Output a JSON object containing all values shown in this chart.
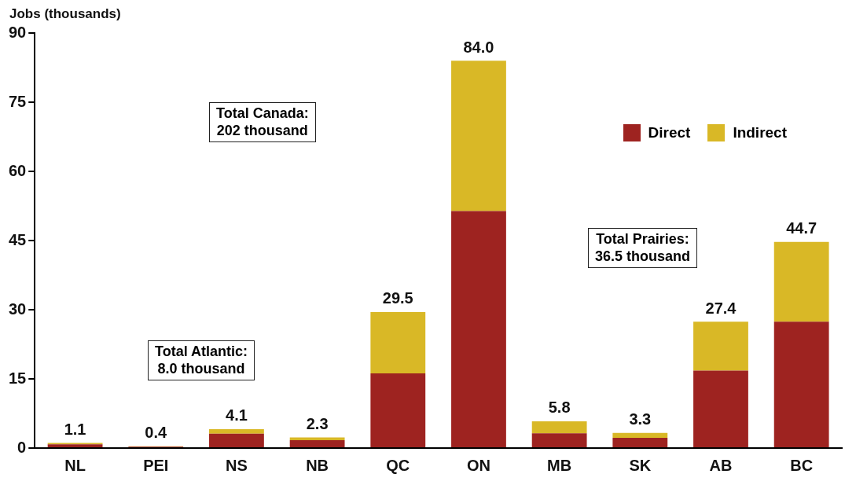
{
  "chart_data": {
    "type": "bar",
    "stacked": true,
    "ylabel": "Jobs (thousands)",
    "categories": [
      "NL",
      "PEI",
      "NS",
      "NB",
      "QC",
      "ON",
      "MB",
      "SK",
      "AB",
      "BC"
    ],
    "series": [
      {
        "name": "Direct",
        "color": "#9e2320",
        "values": [
          0.8,
          0.3,
          3.1,
          1.7,
          16.2,
          51.4,
          3.2,
          2.2,
          16.8,
          27.4
        ]
      },
      {
        "name": "Indirect",
        "color": "#d9b826",
        "values": [
          0.3,
          0.1,
          1.0,
          0.6,
          13.3,
          32.6,
          2.6,
          1.1,
          10.6,
          17.3
        ]
      }
    ],
    "totals": [
      "1.1",
      "0.4",
      "4.1",
      "2.3",
      "29.5",
      "84.0",
      "5.8",
      "3.3",
      "27.4",
      "44.7"
    ],
    "ylim": [
      0,
      90
    ],
    "yticks": [
      0,
      15,
      30,
      45,
      60,
      75,
      90
    ],
    "grid": false,
    "legend": "top right",
    "annotations": [
      "Total Canada:\n202 thousand",
      "Total Atlantic:\n8.0 thousand",
      "Total Prairies:\n36.5 thousand"
    ]
  }
}
